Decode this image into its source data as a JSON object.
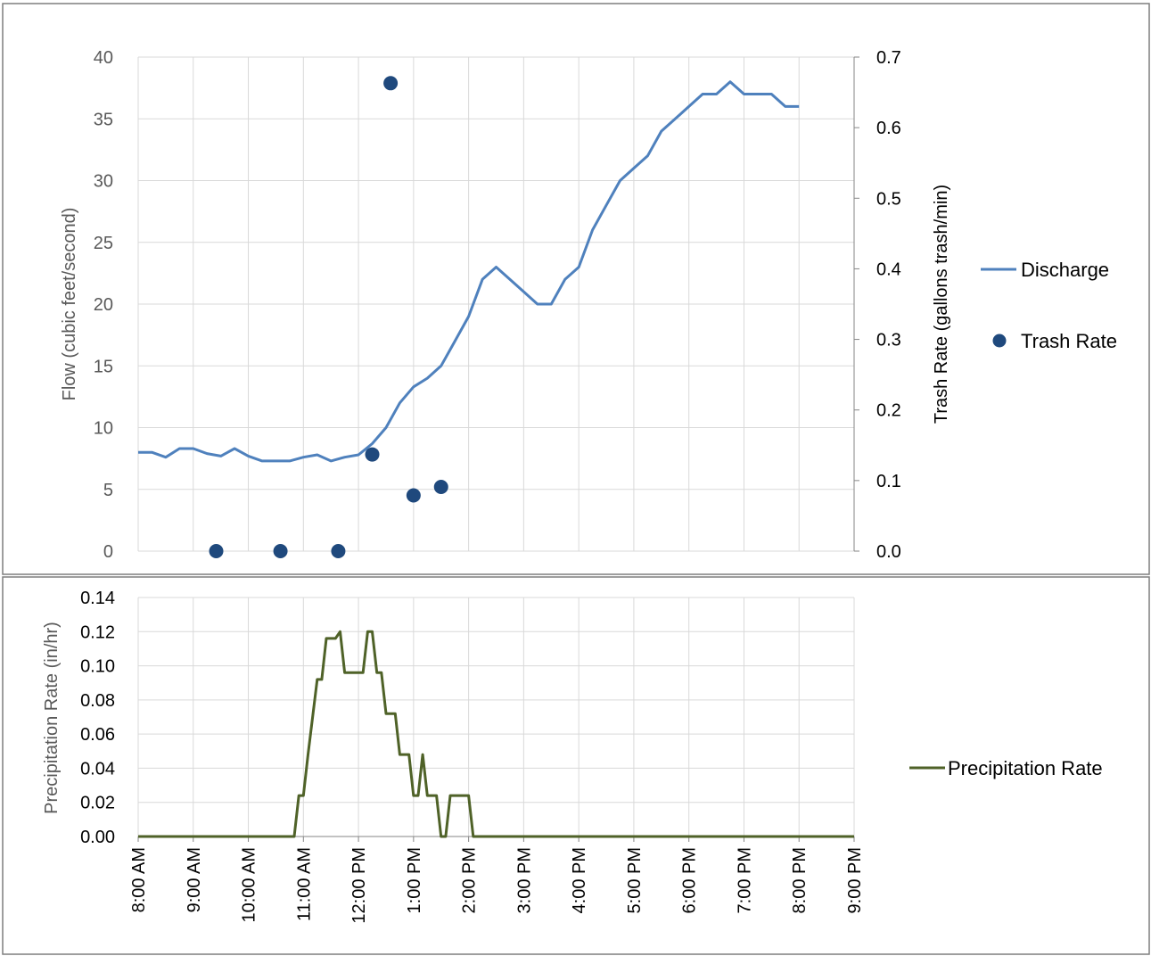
{
  "chart_data": [
    {
      "type": "line",
      "chart": "flow-trash",
      "title": "",
      "xlabel": "",
      "ylabel": "Flow (cubic feet/second)",
      "y2label": "Trash Rate (gallons trash/min)",
      "xlim": [
        "8:00 AM",
        "9:00 PM"
      ],
      "ylim": [
        0,
        40
      ],
      "y2lim": [
        0,
        0.7
      ],
      "y_ticks": [
        "0",
        "5",
        "10",
        "15",
        "20",
        "25",
        "30",
        "35",
        "40"
      ],
      "y2_ticks": [
        "0.0",
        "0.1",
        "0.2",
        "0.3",
        "0.4",
        "0.5",
        "0.6",
        "0.7"
      ],
      "grid": true,
      "legend": "right",
      "series": [
        {
          "name": "Discharge",
          "type": "line",
          "axis": "left",
          "color": "#4F81BD",
          "x": [
            "8:00 AM",
            "8:15 AM",
            "8:30 AM",
            "8:45 AM",
            "9:00 AM",
            "9:15 AM",
            "9:30 AM",
            "9:45 AM",
            "10:00 AM",
            "10:15 AM",
            "10:30 AM",
            "10:45 AM",
            "11:00 AM",
            "11:15 AM",
            "11:30 AM",
            "11:45 AM",
            "12:00 PM",
            "12:15 PM",
            "12:30 PM",
            "12:45 PM",
            "1:00 PM",
            "1:15 PM",
            "1:30 PM",
            "1:45 PM",
            "2:00 PM",
            "2:15 PM",
            "2:30 PM",
            "2:45 PM",
            "3:00 PM",
            "3:15 PM",
            "3:30 PM",
            "3:45 PM",
            "4:00 PM",
            "4:15 PM",
            "4:30 PM",
            "4:45 PM",
            "5:00 PM",
            "5:15 PM",
            "5:30 PM",
            "5:45 PM",
            "6:00 PM",
            "6:15 PM",
            "6:30 PM",
            "6:45 PM",
            "7:00 PM",
            "7:15 PM",
            "7:30 PM",
            "7:45 PM",
            "8:00 PM"
          ],
          "values": [
            8,
            8,
            7.6,
            8.3,
            8.3,
            7.9,
            7.7,
            8.3,
            7.7,
            7.3,
            7.3,
            7.3,
            7.6,
            7.8,
            7.3,
            7.6,
            7.8,
            8.7,
            10,
            12,
            13.3,
            14,
            15,
            17,
            19,
            22,
            23,
            22,
            21,
            20,
            20,
            22,
            23,
            26,
            28,
            30,
            31,
            32,
            34,
            35,
            36,
            37,
            37,
            38,
            37,
            37,
            37,
            36,
            36
          ]
        },
        {
          "name": "Trash Rate",
          "type": "scatter",
          "axis": "right",
          "color": "#1F497D",
          "x": [
            "9:25 AM",
            "10:35 AM",
            "11:38 AM",
            "12:15 PM",
            "12:35 PM",
            "1:00 PM",
            "1:30 PM"
          ],
          "values": [
            0.0,
            0.0,
            0.0,
            0.137,
            0.663,
            0.079,
            0.091
          ]
        }
      ]
    },
    {
      "type": "line",
      "chart": "precipitation",
      "title": "",
      "xlabel": "",
      "ylabel": "Precipitation Rate (in/hr)",
      "xlim": [
        "8:00 AM",
        "9:00 PM"
      ],
      "ylim": [
        0,
        0.14
      ],
      "y_ticks": [
        "0.00",
        "0.02",
        "0.04",
        "0.06",
        "0.08",
        "0.10",
        "0.12",
        "0.14"
      ],
      "x_ticks": [
        "8:00 AM",
        "9:00 AM",
        "10:00 AM",
        "11:00 AM",
        "12:00 PM",
        "1:00 PM",
        "2:00 PM",
        "3:00 PM",
        "4:00 PM",
        "5:00 PM",
        "6:00 PM",
        "7:00 PM",
        "8:00 PM",
        "9:00 PM"
      ],
      "grid": true,
      "legend": "right",
      "series": [
        {
          "name": "Precipitation Rate",
          "color": "#4F6228",
          "x": [
            "8:00 AM",
            "10:50 AM",
            "10:55 AM",
            "11:00 AM",
            "11:05 AM",
            "11:15 AM",
            "11:20 AM",
            "11:25 AM",
            "11:30 AM",
            "11:35 AM",
            "11:40 AM",
            "11:45 AM",
            "11:50 AM",
            "12:00 PM",
            "12:05 PM",
            "12:10 PM",
            "12:15 PM",
            "12:20 PM",
            "12:25 PM",
            "12:30 PM",
            "12:35 PM",
            "12:40 PM",
            "12:45 PM",
            "12:50 PM",
            "12:55 PM",
            "1:00 PM",
            "1:05 PM",
            "1:10 PM",
            "1:15 PM",
            "1:20 PM",
            "1:25 PM",
            "1:30 PM",
            "1:35 PM",
            "1:40 PM",
            "1:45 PM",
            "1:50 PM",
            "1:55 PM",
            "2:00 PM",
            "2:05 PM",
            "2:10 PM",
            "2:15 PM",
            "9:00 PM"
          ],
          "values": [
            0,
            0,
            0.024,
            0.024,
            0.048,
            0.092,
            0.092,
            0.116,
            0.116,
            0.116,
            0.12,
            0.096,
            0.096,
            0.096,
            0.096,
            0.12,
            0.12,
            0.096,
            0.096,
            0.072,
            0.072,
            0.072,
            0.048,
            0.048,
            0.048,
            0.024,
            0.024,
            0.048,
            0.024,
            0.024,
            0.024,
            0,
            0,
            0.024,
            0.024,
            0.024,
            0.024,
            0.024,
            0,
            0,
            0,
            0
          ]
        }
      ]
    }
  ]
}
